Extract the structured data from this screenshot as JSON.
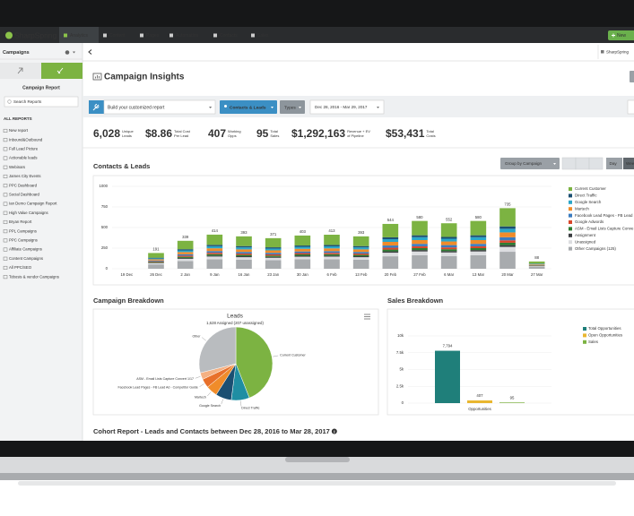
{
  "nav": {
    "brand": "SharpSpring",
    "tabs": [
      "Analytics",
      "Content",
      "Pages",
      "Automation",
      "Contacts",
      "Sales"
    ],
    "new_button": "New",
    "account": "SharpSpring"
  },
  "sidebar": {
    "section": "Campaigns",
    "title": "Campaign Report",
    "search_placeholder": "Search Reports",
    "list_heading": "ALL REPORTS",
    "reports": [
      "New report",
      "Inbound&Outbound",
      "Full Lead Picture",
      "Actionable leads",
      "Webinars",
      "James City Events",
      "PPC Dashboard",
      "Social Dashboard",
      "Ian Demo Campaign Report",
      "High Value Campaigns",
      "Bryan Report",
      "PPL Campaigns",
      "PPC Campaigns",
      "Affiliate Campaigns",
      "Content Campaigns",
      "All PPC/SEO",
      "Tobosis & vendor Campaigns"
    ]
  },
  "header": {
    "title": "Campaign Insights",
    "report_placeholder": "Build your customized report",
    "filter": "Contacts & Leads",
    "types": "Types",
    "date_range": "Dec 28, 2016 - Mar 29, 2017"
  },
  "kpis": [
    {
      "value": "6,028",
      "label": [
        "Unique",
        "Leads"
      ]
    },
    {
      "value": "$8.86",
      "label": [
        "Total Cost",
        "Per Lead"
      ]
    },
    {
      "value": "407",
      "label": [
        "Working",
        "Opps"
      ]
    },
    {
      "value": "95",
      "label": [
        "Total",
        "Sales"
      ]
    },
    {
      "value": "$1,292,163",
      "label": [
        "Revenue + EV",
        "of Pipeline"
      ]
    },
    {
      "value": "$53,431",
      "label": [
        "Total",
        "Costs"
      ]
    }
  ],
  "chart_data": [
    {
      "type": "bar",
      "stacked": true,
      "title": "Contacts & Leads",
      "controls": [
        "Group by Campaign",
        "Day",
        "Week"
      ],
      "categories": [
        "19 Dec",
        "26 Dec",
        "2 Jan",
        "9 Jan",
        "16 Jan",
        "23 Jan",
        "30 Jan",
        "6 Feb",
        "13 Feb",
        "20 Feb",
        "27 Feb",
        "6 Mar",
        "13 Mar",
        "20 Mar",
        "27 Mar"
      ],
      "ylim": [
        0,
        1000
      ],
      "yticks": [
        0,
        250,
        500,
        750,
        1000
      ],
      "grid": true,
      "totals": [
        null,
        191,
        339,
        414,
        393,
        371,
        403,
        413,
        393,
        544,
        580,
        552,
        580,
        735,
        88
      ],
      "series": [
        {
          "name": "Current Customer",
          "color": "#7cb342",
          "values": [
            null,
            57,
            102,
            124,
            118,
            111,
            121,
            124,
            118,
            163,
            174,
            166,
            174,
            221,
            26
          ]
        },
        {
          "name": "Direct Traffic",
          "color": "#1b4f72",
          "values": [
            null,
            8,
            14,
            17,
            16,
            15,
            16,
            17,
            16,
            22,
            23,
            22,
            23,
            29,
            4
          ]
        },
        {
          "name": "Google Search",
          "color": "#2aa6c9",
          "values": [
            null,
            11,
            20,
            25,
            24,
            22,
            24,
            25,
            24,
            33,
            35,
            33,
            35,
            44,
            5
          ]
        },
        {
          "name": "Martech",
          "color": "#f08c2a",
          "values": [
            null,
            15,
            27,
            33,
            31,
            30,
            32,
            33,
            31,
            44,
            46,
            44,
            46,
            59,
            7
          ]
        },
        {
          "name": "Facebook Lead Pages - FB Lead",
          "color": "#3a7bbf",
          "values": [
            null,
            10,
            17,
            21,
            20,
            19,
            20,
            21,
            20,
            27,
            29,
            28,
            29,
            37,
            4
          ]
        },
        {
          "name": "Google Adwords",
          "color": "#d9472b",
          "values": [
            null,
            8,
            14,
            17,
            16,
            15,
            16,
            17,
            16,
            22,
            23,
            22,
            23,
            29,
            4
          ]
        },
        {
          "name": "ASM - Email Lists Capture Conve",
          "color": "#2e7d32",
          "values": [
            null,
            8,
            14,
            17,
            16,
            15,
            16,
            17,
            16,
            22,
            23,
            22,
            23,
            29,
            4
          ]
        },
        {
          "name": "Assignment",
          "color": "#3a3d40",
          "values": [
            null,
            6,
            10,
            12,
            12,
            11,
            12,
            12,
            12,
            16,
            17,
            17,
            17,
            22,
            3
          ]
        },
        {
          "name": "Unassigned",
          "color": "#dcdde0",
          "values": [
            null,
            15,
            27,
            33,
            31,
            30,
            32,
            33,
            31,
            44,
            46,
            44,
            46,
            59,
            7
          ]
        },
        {
          "name": "Other Campaigns (125)",
          "color": "#a8abae",
          "values": [
            null,
            53,
            94,
            115,
            109,
            103,
            114,
            114,
            109,
            151,
            164,
            154,
            164,
            206,
            24
          ]
        }
      ]
    },
    {
      "type": "pie",
      "section_title": "Campaign Breakdown",
      "title": "Leads",
      "subtitle": "1,628 Assigned (207 unassigned)",
      "categories": [
        "Current Customer",
        "Direct Traffic",
        "Google Search",
        "Martech",
        "Facebook Lead Pages - FB Lead Ad - Competitor Guide",
        "ASM - Email Lists Capture Convert 1/17",
        "Other"
      ],
      "values": [
        44,
        8,
        7,
        5,
        4,
        3,
        29
      ],
      "colors": [
        "#7cb342",
        "#1f8ea3",
        "#1b4f72",
        "#f08c2a",
        "#e8702a",
        "#f4b183",
        "#b9bcbf"
      ]
    },
    {
      "type": "bar",
      "title": "Sales Breakdown",
      "categories": [
        "Opportunities"
      ],
      "ylim": [
        0,
        10000
      ],
      "yticks": [
        0,
        {
          "value": 2500,
          "label": "2.5k"
        },
        {
          "value": 5000,
          "label": "5k"
        },
        {
          "value": 7500,
          "label": "7.5k"
        },
        {
          "value": 10000,
          "label": "10k"
        }
      ],
      "grid": true,
      "series": [
        {
          "name": "Total Opportunities",
          "color": "#1f7f7a",
          "values": [
            7794
          ],
          "value_labels": [
            "7,794"
          ]
        },
        {
          "name": "Open Opportunities",
          "color": "#e9b730",
          "values": [
            407
          ],
          "value_labels": [
            "407"
          ]
        },
        {
          "name": "Sales",
          "color": "#7cb342",
          "values": [
            95
          ],
          "value_labels": [
            "95"
          ]
        }
      ]
    }
  ],
  "cohort": {
    "title": "Cohort Report - Leads and Contacts between Dec 28, 2016 to Mar 28, 2017"
  }
}
